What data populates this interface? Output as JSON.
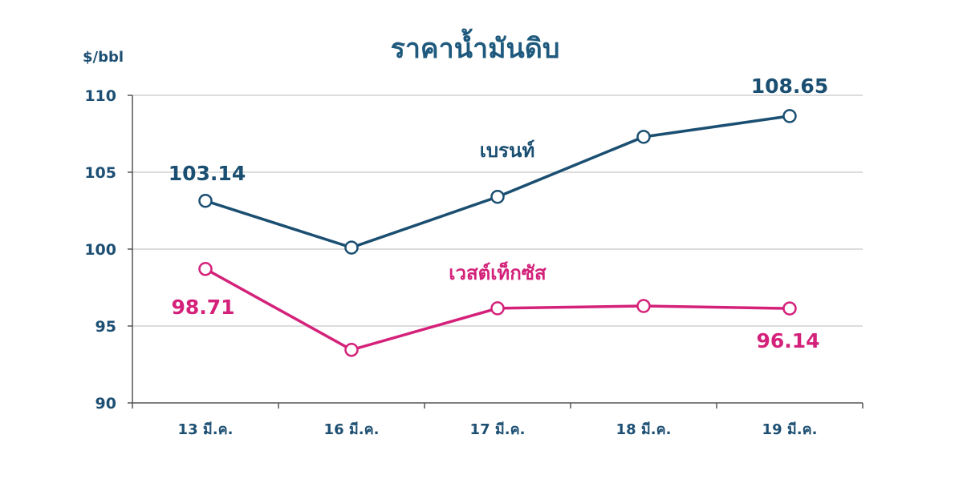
{
  "chart_data": {
    "type": "line",
    "title": "ราคาน้ำมันดิบ",
    "ylabel": "$/bbl",
    "xlabel": "",
    "categories": [
      "13 มี.ค.",
      "16 มี.ค.",
      "17 มี.ค.",
      "18 มี.ค.",
      "19 มี.ค."
    ],
    "ylim": [
      90,
      110
    ],
    "yticks": [
      "90",
      "95",
      "100",
      "105",
      "110"
    ],
    "grid": true,
    "series": [
      {
        "name": "เบรนท์",
        "color": "#1b4f72",
        "values": [
          103.14,
          100.1,
          103.4,
          107.3,
          108.65
        ],
        "data_labels": [
          {
            "index": 0,
            "text": "103.14"
          },
          {
            "index": 4,
            "text": "108.65"
          }
        ]
      },
      {
        "name": "เวสต์เท็กซัส",
        "color": "#d4217a",
        "values": [
          98.71,
          93.45,
          96.15,
          96.3,
          96.14
        ],
        "data_labels": [
          {
            "index": 0,
            "text": "98.71"
          },
          {
            "index": 4,
            "text": "96.14"
          }
        ]
      }
    ]
  }
}
